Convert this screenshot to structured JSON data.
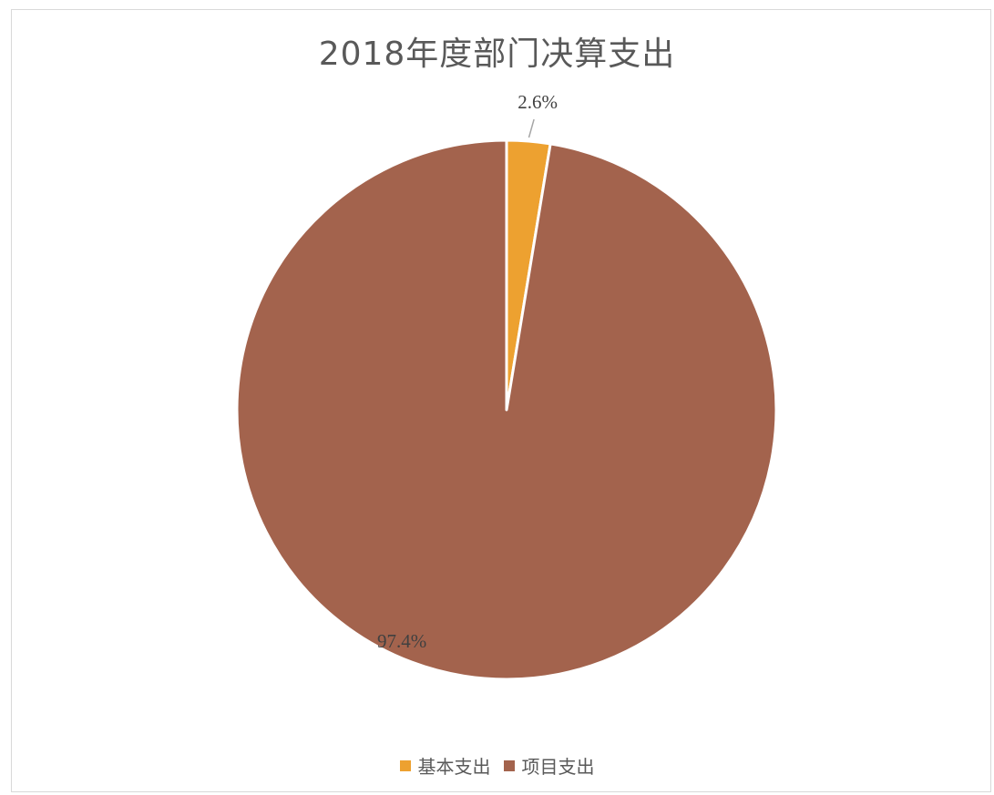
{
  "chart_data": {
    "type": "pie",
    "title": "2018年度部门决算支出",
    "slices": [
      {
        "label": "基本支出",
        "value": 2.6,
        "display": "2.6%",
        "color": "#EDA130"
      },
      {
        "label": "项目支出",
        "value": 97.4,
        "display": "97.4%",
        "color": "#A3634D"
      }
    ],
    "legend_position": "bottom"
  }
}
